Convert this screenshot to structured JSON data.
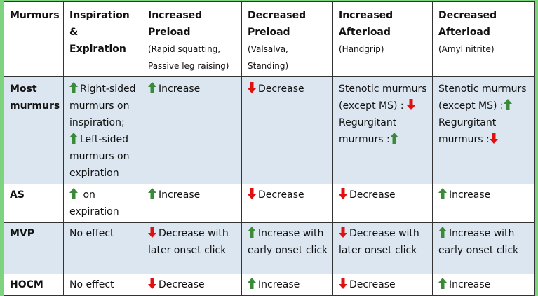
{
  "header": {
    "c0": {
      "title": "Murmurs",
      "sub": ""
    },
    "c1": {
      "title": "Inspiration & Expiration",
      "sub": ""
    },
    "c2": {
      "title": "Increased Preload",
      "sub": "(Rapid squatting, Passive leg raising)"
    },
    "c3": {
      "title": "Decreased Preload",
      "sub": "(Valsalva, Standing)"
    },
    "c4": {
      "title": "Increased Afterload",
      "sub": "(Handgrip)"
    },
    "c5": {
      "title": "Decreased Afterload",
      "sub": "(Amyl nitrite)"
    }
  },
  "rows": {
    "most": {
      "label": "Most murmurs",
      "c1a": "Right-sided murmurs on inspiration;",
      "c1b": "Left-sided murmurs on expiration",
      "c2": "Increase",
      "c3": "Decrease",
      "c4a": "Stenotic murmurs (except MS) :",
      "c4b": "Regurgitant murmurs :",
      "c5a": "Stenotic murmurs (except MS) :",
      "c5b": "Regurgitant murmurs :"
    },
    "as": {
      "label": "AS",
      "c1": "on expiration",
      "c2": "Increase",
      "c3": "Decrease",
      "c4": "Decrease",
      "c5": "Increase"
    },
    "mvp": {
      "label": "MVP",
      "c1": "No effect",
      "c2": "Decrease with later onset click",
      "c3": "Increase with early onset click",
      "c4": "Decrease with later onset click",
      "c5": "Increase with early onset click"
    },
    "hocm": {
      "label": "HOCM",
      "c1": "No effect",
      "c2": "Decrease",
      "c3": "Increase",
      "c4": "Decrease",
      "c5": "Increase"
    }
  },
  "colors": {
    "up": "#3a8a3a",
    "down": "#e01010",
    "shade": "#dce6f1",
    "frame": "#7ed37e"
  },
  "icons": {
    "up": "green-up-arrow-icon",
    "down": "red-down-arrow-icon"
  }
}
